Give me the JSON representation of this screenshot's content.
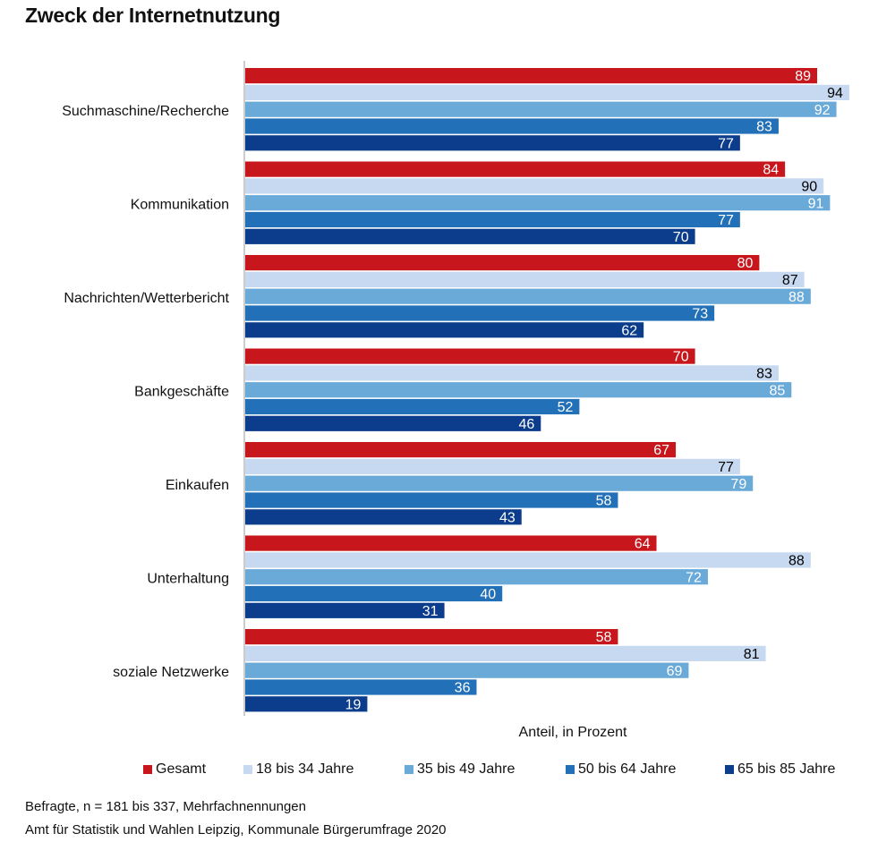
{
  "title": "Zweck der Internetnutzung",
  "chart_data": {
    "type": "bar",
    "orientation": "horizontal",
    "title": "Zweck der Internetnutzung",
    "xlabel": "Anteil, in Prozent",
    "ylabel": "",
    "xlim": [
      0,
      100
    ],
    "grid": false,
    "legend_position": "bottom",
    "categories": [
      "Suchmaschine/Recherche",
      "Kommunikation",
      "Nachrichten/Wetterbericht",
      "Bankgeschäfte",
      "Einkaufen",
      "Unterhaltung",
      "soziale Netzwerke"
    ],
    "series": [
      {
        "name": "Gesamt",
        "color": "#c8161d",
        "label_color": "#ffffff",
        "values": [
          89,
          84,
          80,
          70,
          67,
          64,
          58
        ]
      },
      {
        "name": "18 bis 34 Jahre",
        "color": "#c6d9f0",
        "label_color": "#000000",
        "values": [
          94,
          90,
          87,
          83,
          77,
          88,
          81
        ]
      },
      {
        "name": "35 bis 49 Jahre",
        "color": "#6aaad9",
        "label_color": "#ffffff",
        "values": [
          92,
          91,
          88,
          85,
          79,
          72,
          69
        ]
      },
      {
        "name": "50 bis 64 Jahre",
        "color": "#2270b8",
        "label_color": "#ffffff",
        "values": [
          83,
          77,
          73,
          52,
          58,
          40,
          36
        ]
      },
      {
        "name": "65 bis 85 Jahre",
        "color": "#0c3d8c",
        "label_color": "#ffffff",
        "values": [
          77,
          70,
          62,
          46,
          43,
          31,
          19
        ]
      }
    ]
  },
  "footnotes": {
    "sample": "Befragte, n = 181 bis 337, Mehrfachnennungen",
    "source": "Amt für Statistik und Wahlen Leipzig, Kommunale Bürgerumfrage 2020"
  }
}
